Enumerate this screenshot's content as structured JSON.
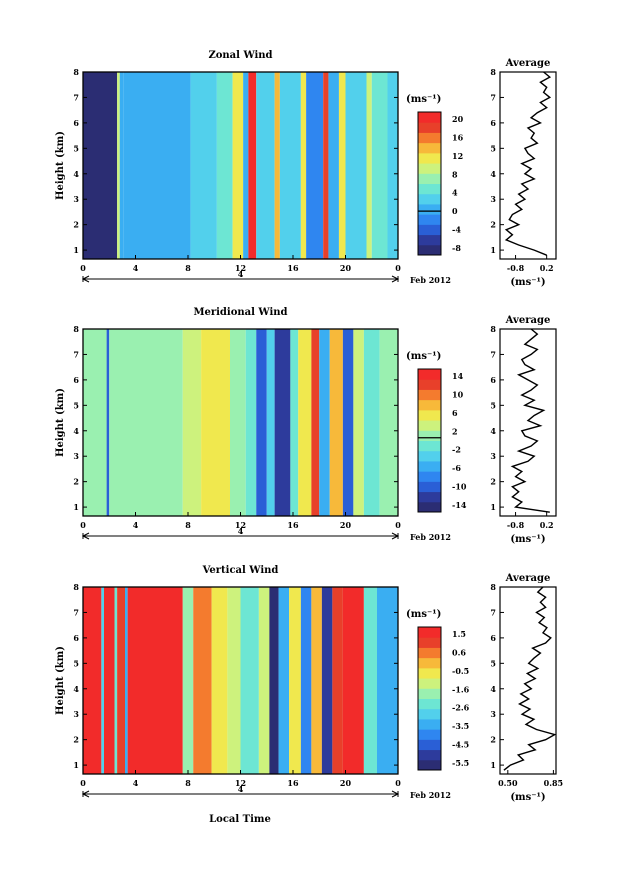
{
  "colors": {
    "jet": [
      "#2b2d73",
      "#2d3b9c",
      "#2a5fd6",
      "#2f86f0",
      "#3aaef2",
      "#52d0ec",
      "#6de6d3",
      "#9af0b0",
      "#cdf27d",
      "#f0e84e",
      "#f7b93a",
      "#f47b2e",
      "#e8402a",
      "#f22b2a"
    ],
    "profile_line": "#000000",
    "frame": "#000000"
  },
  "shared": {
    "time_ticks": [
      "0",
      "4",
      "8",
      "12",
      "16",
      "20",
      "0"
    ],
    "date_label": "4",
    "month_label": "Feb 2012",
    "y_label": "Height (km)",
    "y_ticks": [
      "1",
      "2",
      "3",
      "4",
      "5",
      "6",
      "7",
      "8"
    ],
    "x_title": "Local Time",
    "unit_label": "(ms⁻¹)",
    "avg_title": "Average"
  },
  "chart_data": [
    {
      "type": "heatmap",
      "title": "Zonal Wind",
      "x_range": [
        0,
        24
      ],
      "y_range": [
        0.65,
        8
      ],
      "colorbar": {
        "label": "(ms⁻¹)",
        "ticks": [
          "20",
          "16",
          "12",
          "8",
          "4",
          "0",
          "-4",
          "-8"
        ],
        "range": [
          -10,
          22
        ]
      },
      "columns": [
        {
          "t0": 0.0,
          "t1": 2.6,
          "v": -9
        },
        {
          "t0": 2.6,
          "t1": 2.8,
          "v": 10
        },
        {
          "t0": 2.8,
          "t1": 3.1,
          "v": 1
        },
        {
          "t0": 3.1,
          "t1": 8.2,
          "v": 1
        },
        {
          "t0": 8.2,
          "t1": 10.2,
          "v": 2
        },
        {
          "t0": 10.2,
          "t1": 11.4,
          "v": 4
        },
        {
          "t0": 11.4,
          "t1": 12.2,
          "v": 11
        },
        {
          "t0": 12.2,
          "t1": 12.6,
          "v": 1
        },
        {
          "t0": 12.6,
          "t1": 13.2,
          "v": 20
        },
        {
          "t0": 13.2,
          "t1": 14.6,
          "v": 3
        },
        {
          "t0": 14.6,
          "t1": 15.0,
          "v": 14
        },
        {
          "t0": 15.0,
          "t1": 16.6,
          "v": 2
        },
        {
          "t0": 16.6,
          "t1": 17.0,
          "v": 12
        },
        {
          "t0": 17.0,
          "t1": 18.3,
          "v": -1
        },
        {
          "t0": 18.3,
          "t1": 18.7,
          "v": 18
        },
        {
          "t0": 18.7,
          "t1": 19.5,
          "v": 1
        },
        {
          "t0": 19.5,
          "t1": 20.0,
          "v": 12
        },
        {
          "t0": 20.0,
          "t1": 21.6,
          "v": 3
        },
        {
          "t0": 21.6,
          "t1": 22.0,
          "v": 9
        },
        {
          "t0": 22.0,
          "t1": 23.2,
          "v": 4
        },
        {
          "t0": 23.2,
          "t1": 24.0,
          "v": 2
        }
      ],
      "profile": {
        "x_ticks": [
          "-0.8",
          "0.2"
        ],
        "x_range": [
          -1.3,
          0.5
        ],
        "heights": [
          0.8,
          1.0,
          1.2,
          1.4,
          1.6,
          1.8,
          2.0,
          2.2,
          2.4,
          2.6,
          2.8,
          3.0,
          3.2,
          3.4,
          3.6,
          3.8,
          4.0,
          4.2,
          4.4,
          4.6,
          4.8,
          5.0,
          5.2,
          5.4,
          5.6,
          5.8,
          6.0,
          6.2,
          6.4,
          6.6,
          6.8,
          7.0,
          7.2,
          7.4,
          7.6,
          7.8,
          8.0
        ],
        "values": [
          0.2,
          -0.2,
          -0.7,
          -1.1,
          -0.9,
          -1.1,
          -0.7,
          -1.0,
          -0.9,
          -0.6,
          -0.8,
          -0.5,
          -0.7,
          -0.4,
          -0.6,
          -0.2,
          -0.5,
          -0.3,
          -0.6,
          -0.2,
          -0.4,
          -0.5,
          -0.1,
          -0.3,
          -0.2,
          -0.4,
          0.0,
          -0.3,
          -0.1,
          0.2,
          0.0,
          0.3,
          0.1,
          0.2,
          0.0,
          0.3,
          0.1
        ]
      }
    },
    {
      "type": "heatmap",
      "title": "Meridional Wind",
      "x_range": [
        0,
        24
      ],
      "y_range": [
        0.65,
        8
      ],
      "colorbar": {
        "label": "(ms⁻¹)",
        "ticks": [
          "14",
          "10",
          "6",
          "2",
          "-2",
          "-6",
          "-10",
          "-14"
        ],
        "range": [
          -16,
          16
        ]
      },
      "columns": [
        {
          "t0": 0.0,
          "t1": 1.8,
          "v": 0
        },
        {
          "t0": 1.8,
          "t1": 2.0,
          "v": -10
        },
        {
          "t0": 2.0,
          "t1": 7.6,
          "v": 1
        },
        {
          "t0": 7.6,
          "t1": 9.0,
          "v": 4
        },
        {
          "t0": 9.0,
          "t1": 11.2,
          "v": 6
        },
        {
          "t0": 11.2,
          "t1": 12.4,
          "v": 2
        },
        {
          "t0": 12.4,
          "t1": 13.2,
          "v": -2
        },
        {
          "t0": 13.2,
          "t1": 14.0,
          "v": -10
        },
        {
          "t0": 14.0,
          "t1": 14.6,
          "v": -4
        },
        {
          "t0": 14.6,
          "t1": 15.8,
          "v": -12
        },
        {
          "t0": 15.8,
          "t1": 16.4,
          "v": -2
        },
        {
          "t0": 16.4,
          "t1": 17.4,
          "v": 6
        },
        {
          "t0": 17.4,
          "t1": 18.0,
          "v": 12
        },
        {
          "t0": 18.0,
          "t1": 18.8,
          "v": -6
        },
        {
          "t0": 18.8,
          "t1": 19.8,
          "v": 8
        },
        {
          "t0": 19.8,
          "t1": 20.6,
          "v": -10
        },
        {
          "t0": 20.6,
          "t1": 21.4,
          "v": 4
        },
        {
          "t0": 21.4,
          "t1": 22.6,
          "v": -2
        },
        {
          "t0": 22.6,
          "t1": 24.0,
          "v": 2
        }
      ],
      "profile": {
        "x_ticks": [
          "-0.8",
          "0.2"
        ],
        "x_range": [
          -1.3,
          0.5
        ],
        "heights": [
          0.8,
          1.0,
          1.2,
          1.4,
          1.6,
          1.8,
          2.0,
          2.2,
          2.4,
          2.6,
          2.8,
          3.0,
          3.2,
          3.4,
          3.6,
          3.8,
          4.0,
          4.2,
          4.4,
          4.6,
          4.8,
          5.0,
          5.2,
          5.4,
          5.6,
          5.8,
          6.0,
          6.2,
          6.4,
          6.6,
          6.8,
          7.0,
          7.2,
          7.4,
          7.6,
          7.8,
          8.0
        ],
        "values": [
          0.3,
          -0.8,
          -0.6,
          -0.9,
          -0.7,
          -0.9,
          -0.5,
          -0.8,
          -0.6,
          -0.9,
          -0.4,
          -0.2,
          -0.7,
          -0.3,
          -0.1,
          -0.5,
          -0.6,
          0.0,
          -0.4,
          -0.2,
          0.1,
          -0.5,
          -0.2,
          -0.6,
          -0.3,
          -0.1,
          -0.4,
          -0.7,
          -0.2,
          -0.5,
          -0.6,
          -0.3,
          -0.1,
          -0.5,
          -0.3,
          -0.1,
          -0.3
        ]
      }
    },
    {
      "type": "heatmap",
      "title": "Vertical Wind",
      "x_range": [
        0,
        24
      ],
      "y_range": [
        0.65,
        8
      ],
      "colorbar": {
        "label": "(ms⁻¹)",
        "ticks": [
          "1.5",
          "0.6",
          "-0.5",
          "-1.6",
          "-2.6",
          "-3.5",
          "-4.5",
          "-5.5"
        ],
        "range": [
          -6,
          2
        ]
      },
      "columns": [
        {
          "t0": 0.0,
          "t1": 1.4,
          "v": 1.8
        },
        {
          "t0": 1.4,
          "t1": 1.6,
          "v": -3.0
        },
        {
          "t0": 1.6,
          "t1": 2.4,
          "v": 1.6
        },
        {
          "t0": 2.4,
          "t1": 2.6,
          "v": -2.4
        },
        {
          "t0": 2.6,
          "t1": 3.2,
          "v": 1.4
        },
        {
          "t0": 3.2,
          "t1": 3.4,
          "v": -3.5
        },
        {
          "t0": 3.4,
          "t1": 7.6,
          "v": 1.8
        },
        {
          "t0": 7.6,
          "t1": 8.4,
          "v": -2.0
        },
        {
          "t0": 8.4,
          "t1": 9.8,
          "v": 0.8
        },
        {
          "t0": 9.8,
          "t1": 11.0,
          "v": -0.5
        },
        {
          "t0": 11.0,
          "t1": 12.0,
          "v": -1.2
        },
        {
          "t0": 12.0,
          "t1": 13.4,
          "v": -2.5
        },
        {
          "t0": 13.4,
          "t1": 14.2,
          "v": -1.0
        },
        {
          "t0": 14.2,
          "t1": 14.9,
          "v": -5.5
        },
        {
          "t0": 14.9,
          "t1": 15.7,
          "v": -3.2
        },
        {
          "t0": 15.7,
          "t1": 16.6,
          "v": -0.8
        },
        {
          "t0": 16.6,
          "t1": 17.4,
          "v": -4.2
        },
        {
          "t0": 17.4,
          "t1": 18.2,
          "v": 0.2
        },
        {
          "t0": 18.2,
          "t1": 19.0,
          "v": -5.2
        },
        {
          "t0": 19.0,
          "t1": 19.8,
          "v": 1.0
        },
        {
          "t0": 19.8,
          "t1": 21.4,
          "v": 1.7
        },
        {
          "t0": 21.4,
          "t1": 22.4,
          "v": -2.4
        },
        {
          "t0": 22.4,
          "t1": 24.0,
          "v": -3.6
        }
      ],
      "profile": {
        "x_ticks": [
          "0.50",
          "0.85"
        ],
        "x_range": [
          0.44,
          0.87
        ],
        "heights": [
          0.8,
          1.0,
          1.2,
          1.4,
          1.6,
          1.8,
          2.0,
          2.2,
          2.4,
          2.6,
          2.8,
          3.0,
          3.2,
          3.4,
          3.6,
          3.8,
          4.0,
          4.2,
          4.4,
          4.6,
          4.8,
          5.0,
          5.2,
          5.4,
          5.6,
          5.8,
          6.0,
          6.2,
          6.4,
          6.6,
          6.8,
          7.0,
          7.2,
          7.4,
          7.6,
          7.8,
          8.0
        ],
        "values": [
          0.47,
          0.52,
          0.62,
          0.58,
          0.71,
          0.66,
          0.79,
          0.86,
          0.72,
          0.64,
          0.7,
          0.61,
          0.67,
          0.59,
          0.66,
          0.6,
          0.68,
          0.63,
          0.71,
          0.65,
          0.73,
          0.66,
          0.7,
          0.75,
          0.69,
          0.79,
          0.83,
          0.77,
          0.8,
          0.74,
          0.78,
          0.72,
          0.79,
          0.75,
          0.79,
          0.73,
          0.77
        ]
      }
    }
  ]
}
